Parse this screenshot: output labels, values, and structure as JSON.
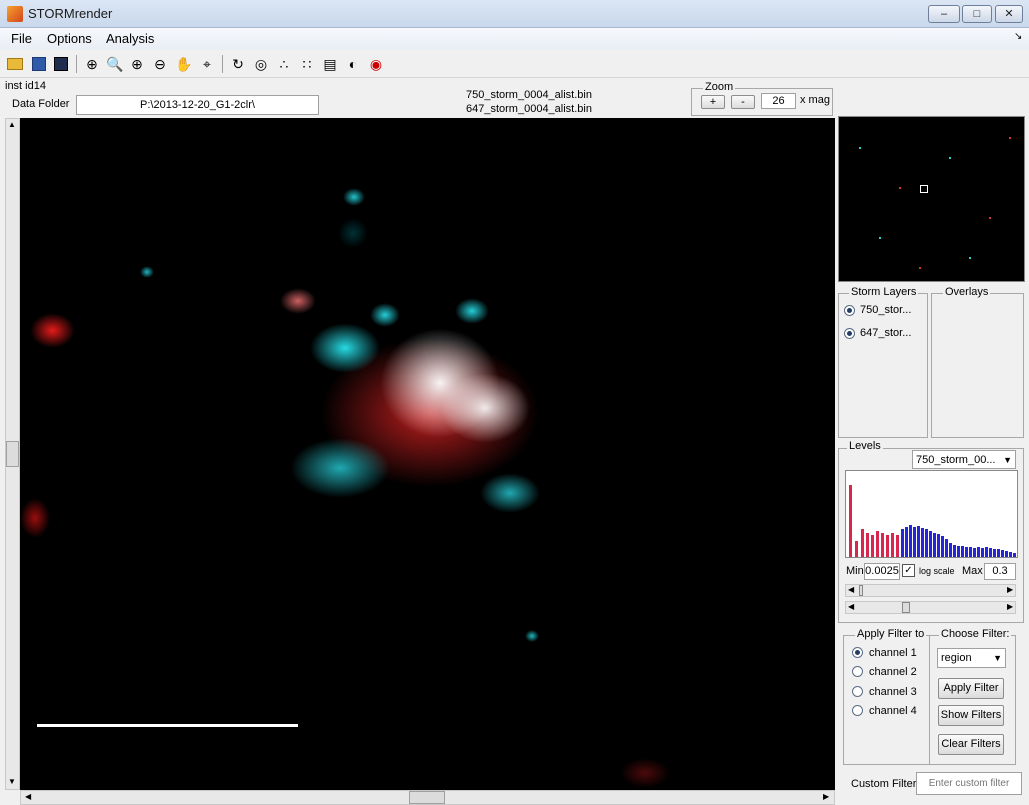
{
  "window": {
    "title": "STORMrender"
  },
  "menu": [
    "File",
    "Options",
    "Analysis"
  ],
  "toolbar_icons": [
    "open-icon",
    "save-icon",
    "save-as-icon",
    "crosshair-icon",
    "zoom-box-icon",
    "zoom-in-icon",
    "zoom-out-icon",
    "pan-hand-icon",
    "data-cursor-icon",
    "rotate-icon",
    "3d-icon",
    "scatter-icon",
    "spot-icon",
    "colormap-icon",
    "contrast-icon",
    "record-icon"
  ],
  "inst_label": "inst id14",
  "data_folder": {
    "label": "Data Folder",
    "value": "P:\\2013-12-20_G1-2clr\\"
  },
  "files": [
    "750_storm_0004_alist.bin",
    "647_storm_0004_alist.bin"
  ],
  "zoom": {
    "title": "Zoom",
    "plus": "+",
    "minus": "-",
    "value": "26",
    "unit": "x mag"
  },
  "storm_layers": {
    "title": "Storm Layers",
    "items": [
      "750_stor...",
      "647_stor..."
    ]
  },
  "overlays": {
    "title": "Overlays"
  },
  "levels": {
    "title": "Levels",
    "channel": "750_storm_00...",
    "min_label": "Min",
    "min_value": "0.0025",
    "log_label": "log scale",
    "max_label": "Max",
    "max_value": "0.3"
  },
  "filter": {
    "apply_title": "Apply Filter to",
    "channels": [
      "channel 1",
      "channel 2",
      "channel 3",
      "channel 4"
    ],
    "choose_title": "Choose Filter:",
    "selected": "region",
    "apply_button": "Apply Filter",
    "show_button": "Show Filters",
    "clear_button": "Clear Filters"
  },
  "custom_filter": {
    "label": "Custom Filter",
    "placeholder": "Enter custom filter"
  }
}
